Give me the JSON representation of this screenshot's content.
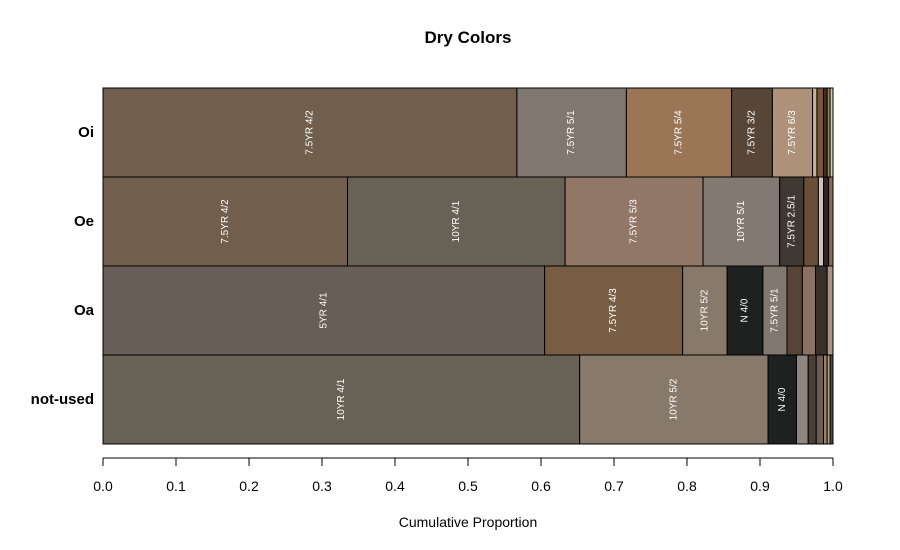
{
  "chart_data": {
    "type": "bar",
    "orientation": "horizontal",
    "stacked": true,
    "title": "Dry Colors",
    "xlabel": "Cumulative Proportion",
    "ylabel": "",
    "xlim": [
      0,
      1
    ],
    "x_ticks": [
      {
        "value": 0.0,
        "label": "0.0"
      },
      {
        "value": 0.1,
        "label": "0.1"
      },
      {
        "value": 0.2,
        "label": "0.2"
      },
      {
        "value": 0.3,
        "label": "0.3"
      },
      {
        "value": 0.4,
        "label": "0.4"
      },
      {
        "value": 0.5,
        "label": "0.5"
      },
      {
        "value": 0.6,
        "label": "0.6"
      },
      {
        "value": 0.7,
        "label": "0.7"
      },
      {
        "value": 0.8,
        "label": "0.8"
      },
      {
        "value": 0.9,
        "label": "0.9"
      },
      {
        "value": 1.0,
        "label": "1.0"
      }
    ],
    "grid": false,
    "categories": [
      "Oi",
      "Oe",
      "Oa",
      "not-used"
    ],
    "rows": [
      {
        "category": "Oi",
        "segments": [
          {
            "label": "7.5YR 4/2",
            "value": 0.567,
            "color": "#715E4D"
          },
          {
            "label": "7.5YR 5/1",
            "value": 0.15,
            "color": "#80776E"
          },
          {
            "label": "7.5YR 5/4",
            "value": 0.144,
            "color": "#9A7657"
          },
          {
            "label": "7.5YR 3/2",
            "value": 0.056,
            "color": "#574538"
          },
          {
            "label": "7.5YR 6/3",
            "value": 0.055,
            "color": "#AE9179"
          },
          {
            "label": "",
            "value": 0.006,
            "color": "#C7AE94"
          },
          {
            "label": "",
            "value": 0.009,
            "color": "#7A5530"
          },
          {
            "label": "",
            "value": 0.005,
            "color": "#3A3028"
          },
          {
            "label": "",
            "value": 0.004,
            "color": "#A08050"
          },
          {
            "label": "",
            "value": 0.004,
            "color": "#D8C8B0"
          }
        ]
      },
      {
        "category": "Oe",
        "segments": [
          {
            "label": "7.5YR 4/2",
            "value": 0.335,
            "color": "#715E4D"
          },
          {
            "label": "10YR 4/1",
            "value": 0.298,
            "color": "#686155"
          },
          {
            "label": "7.5YR 5/3",
            "value": 0.189,
            "color": "#917866"
          },
          {
            "label": "10YR 5/1",
            "value": 0.105,
            "color": "#827A70"
          },
          {
            "label": "7.5YR 2.5/1",
            "value": 0.033,
            "color": "#3F3833"
          },
          {
            "label": "",
            "value": 0.02,
            "color": "#6A4E3A"
          },
          {
            "label": "",
            "value": 0.007,
            "color": "#D0C4B8"
          },
          {
            "label": "",
            "value": 0.007,
            "color": "#2A2622"
          },
          {
            "label": "",
            "value": 0.006,
            "color": "#8A6A55"
          }
        ]
      },
      {
        "category": "Oa",
        "segments": [
          {
            "label": "5YR 4/1",
            "value": 0.605,
            "color": "#695E57"
          },
          {
            "label": "7.5YR 4/3",
            "value": 0.189,
            "color": "#785D45"
          },
          {
            "label": "10YR 5/2",
            "value": 0.061,
            "color": "#887A6A"
          },
          {
            "label": "N 4/0",
            "value": 0.049,
            "color": "#1F2020"
          },
          {
            "label": "7.5YR 5/1",
            "value": 0.033,
            "color": "#80776E"
          },
          {
            "label": "",
            "value": 0.021,
            "color": "#574538"
          },
          {
            "label": "",
            "value": 0.018,
            "color": "#8D7160"
          },
          {
            "label": "",
            "value": 0.016,
            "color": "#3A302A"
          },
          {
            "label": "",
            "value": 0.008,
            "color": "#AA9585"
          }
        ]
      },
      {
        "category": "not-used",
        "segments": [
          {
            "label": "10YR 4/1",
            "value": 0.653,
            "color": "#686155"
          },
          {
            "label": "10YR 5/2",
            "value": 0.258,
            "color": "#887A6A"
          },
          {
            "label": "N 4/0",
            "value": 0.039,
            "color": "#1F2020"
          },
          {
            "label": "",
            "value": 0.016,
            "color": "#8E8680"
          },
          {
            "label": "",
            "value": 0.011,
            "color": "#4A4038"
          },
          {
            "label": "",
            "value": 0.01,
            "color": "#6E5E52"
          },
          {
            "label": "",
            "value": 0.005,
            "color": "#9A8570"
          },
          {
            "label": "",
            "value": 0.004,
            "color": "#B8A48E"
          },
          {
            "label": "",
            "value": 0.004,
            "color": "#5A4A3A"
          }
        ]
      }
    ]
  }
}
